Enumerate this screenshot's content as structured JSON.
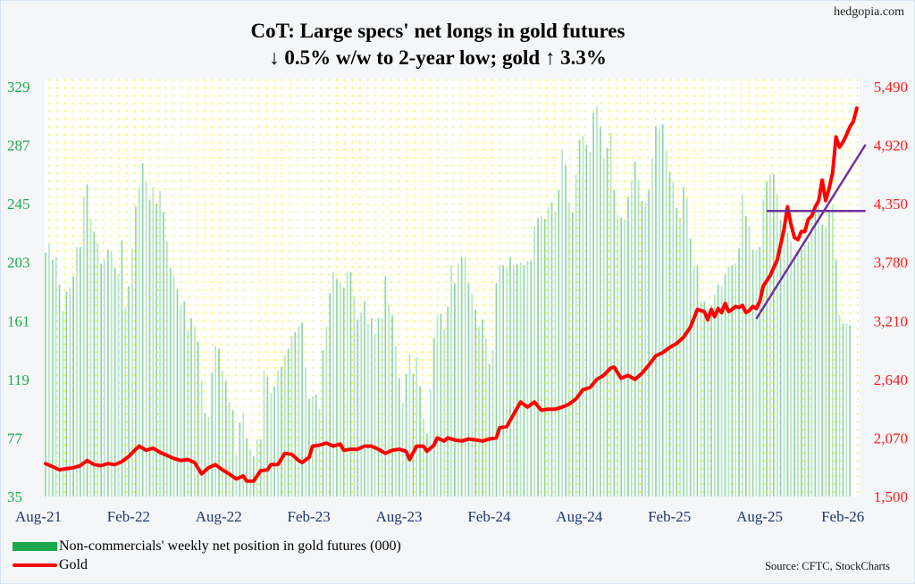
{
  "site": "hedgopia.com",
  "chart_data": {
    "type": "bar+line",
    "title": "CoT: Large specs' net longs in gold futures",
    "subtitle": "↓ 0.5% w/w to 2-year low; gold ↑ 3.3%",
    "x_ticks": [
      "Aug-21",
      "Feb-22",
      "Aug-22",
      "Feb-23",
      "Aug-23",
      "Feb-24",
      "Aug-24",
      "Feb-25",
      "Aug-25",
      "Feb-26"
    ],
    "x_tick_weeks": [
      0,
      26,
      52,
      78,
      104,
      130,
      156,
      182,
      208,
      232
    ],
    "left_axis": {
      "ticks": [
        "329",
        "287",
        "245",
        "203",
        "161",
        "119",
        "77",
        "35"
      ],
      "ylim": [
        35,
        329
      ],
      "color": "#1daa4e"
    },
    "right_axis": {
      "ticks": [
        "5,490",
        "4,920",
        "4,350",
        "3,780",
        "3,210",
        "2,640",
        "2,070",
        "1,500"
      ],
      "ylim": [
        1500,
        5490
      ],
      "color": "#ff1a1a"
    },
    "grid": "dotted yellow",
    "series": [
      {
        "name": "Non-commercials' weekly net position in gold futures (000)",
        "type": "bar",
        "axis": "left",
        "color": "#9fdcb4",
        "values": [
          210,
          216,
          205,
          207,
          187,
          168,
          182,
          185,
          193,
          214,
          214,
          250,
          259,
          234,
          225,
          217,
          202,
          205,
          212,
          211,
          199,
          194,
          219,
          171,
          186,
          213,
          243,
          257,
          274,
          261,
          248,
          257,
          245,
          254,
          239,
          218,
          199,
          193,
          184,
          172,
          175,
          154,
          163,
          157,
          146,
          118,
          95,
          92,
          124,
          143,
          141,
          125,
          118,
          103,
          97,
          65,
          88,
          95,
          77,
          69,
          64,
          76,
          76,
          125,
          121,
          109,
          114,
          125,
          128,
          136,
          141,
          150,
          153,
          157,
          160,
          128,
          105,
          107,
          108,
          98,
          140,
          157,
          181,
          196,
          191,
          189,
          185,
          196,
          196,
          179,
          162,
          167,
          175,
          159,
          163,
          152,
          163,
          163,
          193,
          173,
          165,
          143,
          120,
          102,
          123,
          137,
          123,
          135,
          114,
          91,
          80,
          112,
          149,
          165,
          166,
          155,
          171,
          201,
          188,
          202,
          207,
          207,
          188,
          180,
          169,
          157,
          162,
          148,
          130,
          140,
          188,
          201,
          201,
          199,
          207,
          201,
          202,
          203,
          201,
          204,
          204,
          229,
          235,
          236,
          234,
          242,
          246,
          239,
          255,
          284,
          273,
          246,
          239,
          266,
          291,
          294,
          287,
          282,
          310,
          315,
          300,
          278,
          285,
          296,
          255,
          237,
          235,
          233,
          250,
          261,
          275,
          262,
          247,
          246,
          255,
          278,
          300,
          299,
          302,
          283,
          268,
          261,
          242,
          235,
          257,
          249,
          220,
          200,
          201,
          175,
          175,
          170,
          172,
          180,
          187,
          186,
          194,
          200,
          201,
          202,
          213,
          252,
          236,
          229,
          212,
          212,
          214,
          248,
          261,
          266,
          266,
          252,
          233,
          229,
          224,
          218,
          207,
          210,
          212,
          216,
          218,
          231,
          239,
          252,
          230,
          228,
          239,
          244,
          205,
          165,
          159,
          159,
          158
        ]
      },
      {
        "name": "Gold",
        "type": "line",
        "axis": "right",
        "color": "#ff0000",
        "points": [
          [
            0,
            1820
          ],
          [
            2,
            1790
          ],
          [
            4,
            1760
          ],
          [
            6,
            1770
          ],
          [
            8,
            1780
          ],
          [
            10,
            1800
          ],
          [
            12,
            1850
          ],
          [
            14,
            1810
          ],
          [
            16,
            1800
          ],
          [
            18,
            1820
          ],
          [
            20,
            1810
          ],
          [
            22,
            1840
          ],
          [
            24,
            1890
          ],
          [
            26,
            1960
          ],
          [
            27,
            1990
          ],
          [
            29,
            1950
          ],
          [
            31,
            1970
          ],
          [
            33,
            1930
          ],
          [
            35,
            1900
          ],
          [
            37,
            1870
          ],
          [
            39,
            1850
          ],
          [
            41,
            1860
          ],
          [
            43,
            1830
          ],
          [
            45,
            1720
          ],
          [
            47,
            1780
          ],
          [
            49,
            1810
          ],
          [
            51,
            1760
          ],
          [
            53,
            1720
          ],
          [
            55,
            1670
          ],
          [
            57,
            1700
          ],
          [
            58,
            1650
          ],
          [
            60,
            1650
          ],
          [
            62,
            1750
          ],
          [
            64,
            1760
          ],
          [
            65,
            1810
          ],
          [
            67,
            1810
          ],
          [
            69,
            1920
          ],
          [
            71,
            1910
          ],
          [
            73,
            1850
          ],
          [
            74,
            1830
          ],
          [
            76,
            1880
          ],
          [
            77,
            1990
          ],
          [
            79,
            2000
          ],
          [
            81,
            2020
          ],
          [
            83,
            1990
          ],
          [
            85,
            2010
          ],
          [
            86,
            1950
          ],
          [
            88,
            1960
          ],
          [
            90,
            1960
          ],
          [
            92,
            1990
          ],
          [
            94,
            1990
          ],
          [
            96,
            1960
          ],
          [
            98,
            1920
          ],
          [
            100,
            1950
          ],
          [
            102,
            1960
          ],
          [
            104,
            1940
          ],
          [
            105,
            1860
          ],
          [
            107,
            1990
          ],
          [
            109,
            1990
          ],
          [
            110,
            1940
          ],
          [
            112,
            2000
          ],
          [
            113,
            2070
          ],
          [
            115,
            2040
          ],
          [
            116,
            2070
          ],
          [
            118,
            2050
          ],
          [
            120,
            2040
          ],
          [
            122,
            2060
          ],
          [
            124,
            2050
          ],
          [
            126,
            2040
          ],
          [
            128,
            2060
          ],
          [
            130,
            2070
          ],
          [
            131,
            2170
          ],
          [
            133,
            2180
          ],
          [
            135,
            2300
          ],
          [
            137,
            2420
          ],
          [
            139,
            2370
          ],
          [
            141,
            2420
          ],
          [
            143,
            2340
          ],
          [
            145,
            2350
          ],
          [
            147,
            2350
          ],
          [
            149,
            2370
          ],
          [
            151,
            2400
          ],
          [
            153,
            2450
          ],
          [
            155,
            2540
          ],
          [
            157,
            2560
          ],
          [
            159,
            2640
          ],
          [
            161,
            2680
          ],
          [
            163,
            2750
          ],
          [
            164,
            2760
          ],
          [
            166,
            2650
          ],
          [
            168,
            2680
          ],
          [
            170,
            2640
          ],
          [
            172,
            2700
          ],
          [
            174,
            2780
          ],
          [
            176,
            2870
          ],
          [
            178,
            2900
          ],
          [
            180,
            2950
          ],
          [
            182,
            2990
          ],
          [
            184,
            3050
          ],
          [
            186,
            3150
          ],
          [
            188,
            3320
          ],
          [
            190,
            3300
          ],
          [
            191,
            3220
          ],
          [
            192,
            3320
          ],
          [
            193,
            3250
          ],
          [
            194,
            3330
          ],
          [
            195,
            3290
          ],
          [
            196,
            3380
          ],
          [
            197,
            3300
          ],
          [
            198,
            3320
          ],
          [
            199,
            3350
          ],
          [
            200,
            3340
          ],
          [
            201,
            3360
          ],
          [
            202,
            3290
          ],
          [
            203,
            3310
          ],
          [
            204,
            3350
          ],
          [
            205,
            3330
          ],
          [
            206,
            3400
          ],
          [
            207,
            3550
          ],
          [
            209,
            3650
          ],
          [
            211,
            3800
          ],
          [
            212,
            3950
          ],
          [
            213,
            4100
          ],
          [
            214,
            4320
          ],
          [
            215,
            4150
          ],
          [
            216,
            4020
          ],
          [
            217,
            4000
          ],
          [
            218,
            4080
          ],
          [
            219,
            4080
          ],
          [
            220,
            4200
          ],
          [
            221,
            4230
          ],
          [
            222,
            4320
          ],
          [
            223,
            4380
          ],
          [
            224,
            4580
          ],
          [
            225,
            4380
          ],
          [
            226,
            4500
          ],
          [
            227,
            4650
          ],
          [
            228,
            5000
          ],
          [
            229,
            4900
          ],
          [
            230,
            4950
          ],
          [
            231,
            5020
          ],
          [
            232,
            5100
          ],
          [
            233,
            5150
          ],
          [
            234,
            5280
          ]
        ]
      }
    ],
    "annotations": [
      {
        "type": "trendline",
        "color": "#7030a0",
        "from": [
          205,
          3230
        ],
        "to": [
          236.5,
          4925
        ]
      },
      {
        "type": "horizontal",
        "color": "#7030a0",
        "from": [
          208,
          4280
        ],
        "to": [
          236.5,
          4280
        ]
      }
    ],
    "legend": {
      "position": "bottom-left",
      "entries": [
        "Non-commercials' weekly net position in gold futures (000)",
        "Gold"
      ]
    },
    "source": "Source: CFTC, StockCharts"
  }
}
